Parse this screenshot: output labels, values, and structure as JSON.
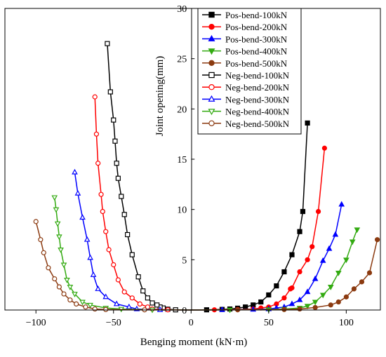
{
  "chart_data": {
    "type": "line",
    "title": "",
    "xlabel": "Benging moment (kN·m)",
    "ylabel": "Joint opening(mm)",
    "xlim": [
      -120,
      122
    ],
    "ylim": [
      0,
      30
    ],
    "x_ticks": [
      -100,
      -50,
      0,
      50,
      100
    ],
    "y_ticks": [
      0,
      5,
      10,
      15,
      20,
      25,
      30
    ],
    "x_tick_labels": [
      "−100",
      "−50",
      "0",
      "50",
      "100"
    ],
    "y_tick_labels": [
      "0",
      "5",
      "10",
      "15",
      "20",
      "25",
      "30"
    ],
    "grid": false,
    "legend_position": "top-right",
    "series": [
      {
        "name": "Pos-bend-100kN",
        "color": "#000000",
        "marker": "square",
        "filled": true,
        "points": [
          [
            0,
            0
          ],
          [
            10,
            0.02
          ],
          [
            20,
            0.06
          ],
          [
            25,
            0.1
          ],
          [
            30,
            0.18
          ],
          [
            35,
            0.3
          ],
          [
            40,
            0.5
          ],
          [
            45,
            0.8
          ],
          [
            50,
            1.5
          ],
          [
            55,
            2.4
          ],
          [
            60,
            3.8
          ],
          [
            65,
            5.5
          ],
          [
            70,
            7.8
          ],
          [
            72,
            9.8
          ],
          [
            75,
            18.6
          ]
        ]
      },
      {
        "name": "Pos-bend-200kN",
        "color": "#ff0000",
        "marker": "circle",
        "filled": true,
        "points": [
          [
            0,
            0
          ],
          [
            15,
            0.02
          ],
          [
            30,
            0.05
          ],
          [
            40,
            0.1
          ],
          [
            45,
            0.2
          ],
          [
            50,
            0.3
          ],
          [
            55,
            0.6
          ],
          [
            60,
            1.2
          ],
          [
            64,
            2.1
          ],
          [
            65,
            2.2
          ],
          [
            70,
            3.8
          ],
          [
            75,
            5.0
          ],
          [
            78,
            6.3
          ],
          [
            82,
            9.8
          ],
          [
            86,
            16.1
          ]
        ]
      },
      {
        "name": "Pos-bend-300kN",
        "color": "#0000ff",
        "marker": "triangle-up",
        "filled": true,
        "points": [
          [
            0,
            0
          ],
          [
            20,
            0.02
          ],
          [
            40,
            0.05
          ],
          [
            50,
            0.1
          ],
          [
            55,
            0.2
          ],
          [
            60,
            0.3
          ],
          [
            65,
            0.6
          ],
          [
            70,
            1.0
          ],
          [
            75,
            1.8
          ],
          [
            80,
            3.1
          ],
          [
            85,
            4.9
          ],
          [
            89,
            6.1
          ],
          [
            93,
            7.5
          ],
          [
            97,
            10.5
          ]
        ]
      },
      {
        "name": "Pos-bend-400kN",
        "color": "#33aa11",
        "marker": "triangle-down",
        "filled": true,
        "points": [
          [
            0,
            0
          ],
          [
            25,
            0.02
          ],
          [
            50,
            0.05
          ],
          [
            60,
            0.1
          ],
          [
            70,
            0.2
          ],
          [
            75,
            0.4
          ],
          [
            80,
            0.8
          ],
          [
            85,
            1.5
          ],
          [
            90,
            2.3
          ],
          [
            95,
            3.7
          ],
          [
            100,
            5.0
          ],
          [
            104,
            6.8
          ],
          [
            107,
            8.0
          ]
        ]
      },
      {
        "name": "Pos-bend-500kN",
        "color": "#8b3a10",
        "marker": "circle",
        "filled": true,
        "points": [
          [
            0,
            0
          ],
          [
            30,
            0.02
          ],
          [
            60,
            0.05
          ],
          [
            70,
            0.1
          ],
          [
            80,
            0.25
          ],
          [
            90,
            0.5
          ],
          [
            95,
            0.8
          ],
          [
            100,
            1.3
          ],
          [
            105,
            2.1
          ],
          [
            110,
            2.8
          ],
          [
            115,
            3.7
          ],
          [
            120,
            7.0
          ]
        ]
      },
      {
        "name": "Neg-bend-100kN",
        "color": "#000000",
        "marker": "square",
        "filled": false,
        "points": [
          [
            0,
            0
          ],
          [
            -10,
            0.02
          ],
          [
            -15,
            0.08
          ],
          [
            -18,
            0.2
          ],
          [
            -20,
            0.3
          ],
          [
            -22,
            0.5
          ],
          [
            -25,
            0.7
          ],
          [
            -28,
            1.2
          ],
          [
            -31,
            1.9
          ],
          [
            -34,
            3.3
          ],
          [
            -38,
            5.5
          ],
          [
            -41,
            7.5
          ],
          [
            -43,
            9.5
          ],
          [
            -45,
            11.3
          ],
          [
            -47,
            13.1
          ],
          [
            -48,
            14.6
          ],
          [
            -49,
            16.8
          ],
          [
            -50,
            18.9
          ],
          [
            -52,
            21.7
          ],
          [
            -54,
            26.5
          ]
        ]
      },
      {
        "name": "Neg-bend-200kN",
        "color": "#ff0000",
        "marker": "circle",
        "filled": false,
        "points": [
          [
            0,
            0
          ],
          [
            -15,
            0.02
          ],
          [
            -25,
            0.1
          ],
          [
            -28,
            0.3
          ],
          [
            -33,
            0.6
          ],
          [
            -38,
            1.2
          ],
          [
            -43,
            1.8
          ],
          [
            -47,
            3.0
          ],
          [
            -50,
            4.5
          ],
          [
            -53,
            6.0
          ],
          [
            -55,
            7.8
          ],
          [
            -57,
            9.8
          ],
          [
            -58,
            11.5
          ],
          [
            -60,
            14.6
          ],
          [
            -61,
            17.5
          ],
          [
            -62,
            21.2
          ]
        ]
      },
      {
        "name": "Neg-bend-300kN",
        "color": "#0000ff",
        "marker": "triangle-up",
        "filled": false,
        "points": [
          [
            0,
            0
          ],
          [
            -20,
            0.02
          ],
          [
            -35,
            0.1
          ],
          [
            -40,
            0.3
          ],
          [
            -48,
            0.6
          ],
          [
            -55,
            1.3
          ],
          [
            -60,
            2.1
          ],
          [
            -63,
            3.5
          ],
          [
            -65,
            5.2
          ],
          [
            -67,
            7.0
          ],
          [
            -70,
            9.2
          ],
          [
            -73,
            11.6
          ],
          [
            -75,
            13.7
          ]
        ]
      },
      {
        "name": "Neg-bend-400kN",
        "color": "#33aa11",
        "marker": "triangle-down",
        "filled": false,
        "points": [
          [
            0,
            0
          ],
          [
            -25,
            0.02
          ],
          [
            -45,
            0.1
          ],
          [
            -55,
            0.2
          ],
          [
            -65,
            0.5
          ],
          [
            -70,
            0.8
          ],
          [
            -75,
            1.6
          ],
          [
            -78,
            2.3
          ],
          [
            -80,
            3.0
          ],
          [
            -82,
            4.5
          ],
          [
            -84,
            6.0
          ],
          [
            -85,
            7.3
          ],
          [
            -86,
            8.6
          ],
          [
            -87,
            10.0
          ],
          [
            -88,
            11.2
          ]
        ]
      },
      {
        "name": "Neg-bend-500kN",
        "color": "#8b3a10",
        "marker": "circle",
        "filled": false,
        "points": [
          [
            0,
            0
          ],
          [
            -30,
            0.02
          ],
          [
            -55,
            0.05
          ],
          [
            -62,
            0.1
          ],
          [
            -68,
            0.3
          ],
          [
            -74,
            0.6
          ],
          [
            -78,
            1.0
          ],
          [
            -82,
            1.6
          ],
          [
            -85,
            2.3
          ],
          [
            -88,
            3.1
          ],
          [
            -92,
            4.2
          ],
          [
            -95,
            5.7
          ],
          [
            -97,
            7.0
          ],
          [
            -100,
            8.8
          ]
        ]
      }
    ]
  }
}
